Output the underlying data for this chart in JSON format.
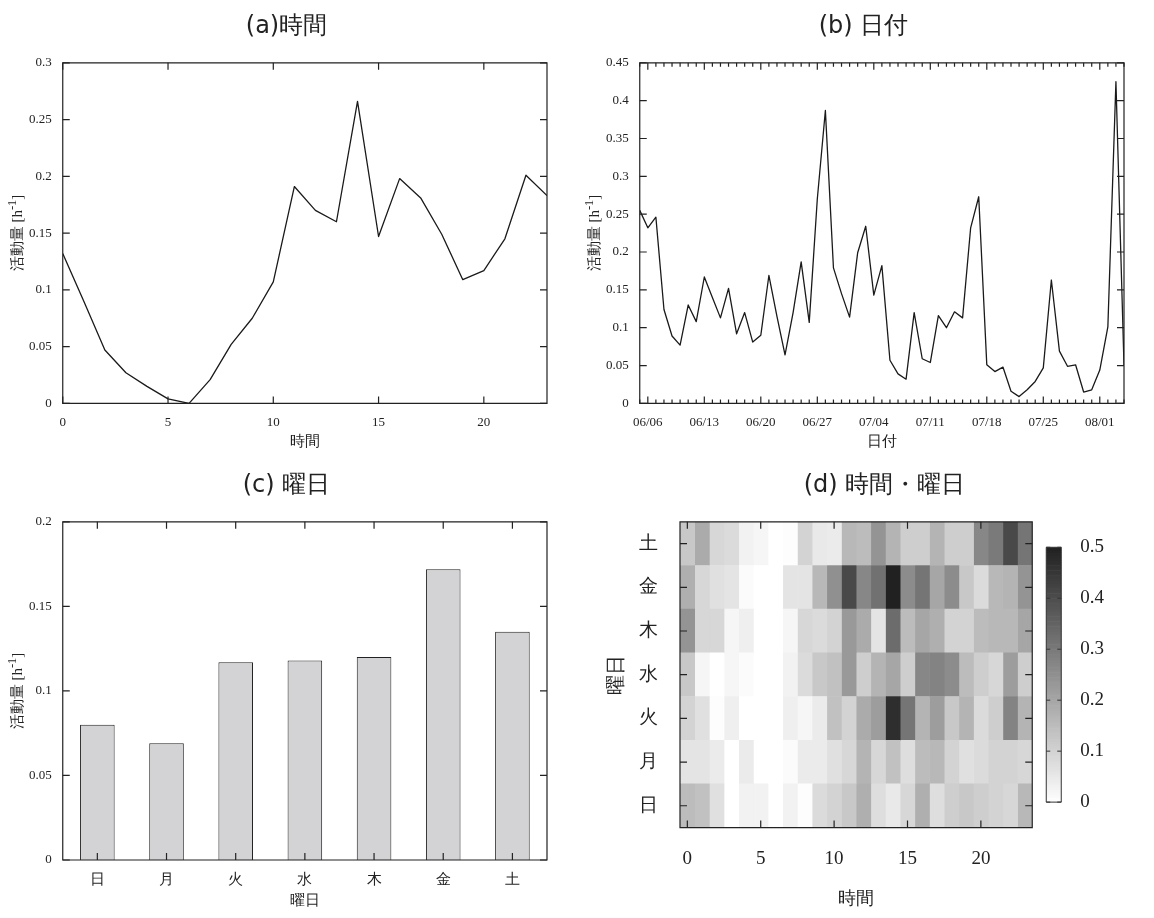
{
  "chart_data": [
    {
      "type": "line",
      "title": "(a)時間",
      "xlabel": "時間",
      "ylabel": "活動量 [h$^{-1}$]",
      "color": "#1a1a1a",
      "x": [
        0,
        1,
        2,
        3,
        4,
        5,
        6,
        7,
        8,
        9,
        10,
        11,
        12,
        13,
        14,
        15,
        16,
        17,
        18,
        19,
        20,
        21,
        22,
        23
      ],
      "values": [
        0.132,
        0.09,
        0.047,
        0.027,
        0.015,
        0.004,
        0.0,
        0.021,
        0.052,
        0.075,
        0.107,
        0.191,
        0.17,
        0.16,
        0.266,
        0.147,
        0.198,
        0.181,
        0.149,
        0.109,
        0.117,
        0.145,
        0.201,
        0.183
      ],
      "xlim": [
        0,
        23
      ],
      "xticks": [
        0,
        5,
        10,
        15,
        20
      ],
      "ylim": [
        0,
        0.3
      ],
      "yticks": [
        0,
        0.05,
        0.1,
        0.15,
        0.2,
        0.25,
        0.3
      ]
    },
    {
      "type": "line",
      "title": "(b) 日付",
      "xlabel": "日付",
      "ylabel": "活動量 [h$^{-1}$]",
      "color": "#1a1a1a",
      "x": [
        "--06-05",
        "--06-06",
        "--06-07",
        "--06-08",
        "--06-09",
        "--06-10",
        "--06-11",
        "--06-12",
        "--06-13",
        "--06-14",
        "--06-15",
        "--06-16",
        "--06-17",
        "--06-18",
        "--06-19",
        "--06-20",
        "--06-21",
        "--06-22",
        "--06-23",
        "--06-24",
        "--06-25",
        "--06-26",
        "--06-27",
        "--06-28",
        "--06-29",
        "--06-30",
        "--07-01",
        "--07-02",
        "--07-03",
        "--07-04",
        "--07-05",
        "--07-06",
        "--07-07",
        "--07-08",
        "--07-09",
        "--07-10",
        "--07-11",
        "--07-12",
        "--07-13",
        "--07-14",
        "--07-15",
        "--07-16",
        "--07-17",
        "--07-18",
        "--07-19",
        "--07-20",
        "--07-21",
        "--07-22",
        "--07-23",
        "--07-24",
        "--07-25",
        "--07-26",
        "--07-27",
        "--07-28",
        "--07-29",
        "--07-30",
        "--07-31",
        "--08-01",
        "--08-02",
        "--08-03",
        "--08-04"
      ],
      "values": [
        0.255,
        0.232,
        0.246,
        0.124,
        0.089,
        0.077,
        0.13,
        0.108,
        0.167,
        0.14,
        0.113,
        0.152,
        0.092,
        0.12,
        0.081,
        0.09,
        0.169,
        0.115,
        0.064,
        0.12,
        0.187,
        0.107,
        0.27,
        0.387,
        0.179,
        0.145,
        0.114,
        0.199,
        0.234,
        0.143,
        0.182,
        0.057,
        0.039,
        0.032,
        0.12,
        0.059,
        0.054,
        0.116,
        0.1,
        0.121,
        0.113,
        0.232,
        0.273,
        0.051,
        0.042,
        0.048,
        0.016,
        0.009,
        0.018,
        0.029,
        0.047,
        0.163,
        0.069,
        0.049,
        0.051,
        0.015,
        0.018,
        0.044,
        0.101,
        0.425,
        0.05
      ],
      "xlim": [
        "--06-05",
        "--08-04"
      ],
      "xticks": [
        {
          "value": "--06-05",
          "label": null
        },
        {
          "value": "--06-06",
          "label": "06/06"
        },
        {
          "value": "--06-07",
          "label": null
        },
        {
          "value": "--06-08",
          "label": null
        },
        {
          "value": "--06-09",
          "label": null
        },
        {
          "value": "--06-10",
          "label": null
        },
        {
          "value": "--06-11",
          "label": null
        },
        {
          "value": "--06-12",
          "label": null
        },
        {
          "value": "--06-13",
          "label": "06/13"
        },
        {
          "value": "--06-14",
          "label": null
        },
        {
          "value": "--06-15",
          "label": null
        },
        {
          "value": "--06-16",
          "label": null
        },
        {
          "value": "--06-17",
          "label": null
        },
        {
          "value": "--06-18",
          "label": null
        },
        {
          "value": "--06-19",
          "label": null
        },
        {
          "value": "--06-20",
          "label": "06/20"
        },
        {
          "value": "--06-21",
          "label": null
        },
        {
          "value": "--06-22",
          "label": null
        },
        {
          "value": "--06-23",
          "label": null
        },
        {
          "value": "--06-24",
          "label": null
        },
        {
          "value": "--06-25",
          "label": null
        },
        {
          "value": "--06-26",
          "label": null
        },
        {
          "value": "--06-27",
          "label": "06/27"
        },
        {
          "value": "--06-28",
          "label": null
        },
        {
          "value": "--06-29",
          "label": null
        },
        {
          "value": "--06-30",
          "label": null
        },
        {
          "value": "--07-01",
          "label": null
        },
        {
          "value": "--07-02",
          "label": null
        },
        {
          "value": "--07-03",
          "label": null
        },
        {
          "value": "--07-04",
          "label": "07/04"
        },
        {
          "value": "--07-05",
          "label": null
        },
        {
          "value": "--07-06",
          "label": null
        },
        {
          "value": "--07-07",
          "label": null
        },
        {
          "value": "--07-08",
          "label": null
        },
        {
          "value": "--07-09",
          "label": null
        },
        {
          "value": "--07-10",
          "label": null
        },
        {
          "value": "--07-11",
          "label": "07/11"
        },
        {
          "value": "--07-12",
          "label": null
        },
        {
          "value": "--07-13",
          "label": null
        },
        {
          "value": "--07-14",
          "label": null
        },
        {
          "value": "--07-15",
          "label": null
        },
        {
          "value": "--07-16",
          "label": null
        },
        {
          "value": "--07-17",
          "label": null
        },
        {
          "value": "--07-18",
          "label": "07/18"
        },
        {
          "value": "--07-19",
          "label": null
        },
        {
          "value": "--07-20",
          "label": null
        },
        {
          "value": "--07-21",
          "label": null
        },
        {
          "value": "--07-22",
          "label": null
        },
        {
          "value": "--07-23",
          "label": null
        },
        {
          "value": "--07-24",
          "label": null
        },
        {
          "value": "--07-25",
          "label": "07/25"
        },
        {
          "value": "--07-26",
          "label": null
        },
        {
          "value": "--07-27",
          "label": null
        },
        {
          "value": "--07-28",
          "label": null
        },
        {
          "value": "--07-29",
          "label": null
        },
        {
          "value": "--07-30",
          "label": null
        },
        {
          "value": "--07-31",
          "label": null
        },
        {
          "value": "--08-01",
          "label": "08/01"
        },
        {
          "value": "--08-02",
          "label": null
        },
        {
          "value": "--08-03",
          "label": null
        },
        {
          "value": "--08-04",
          "label": null
        }
      ],
      "ylim": [
        0,
        0.45
      ],
      "yticks": [
        0,
        0.05,
        0.1,
        0.15,
        0.2,
        0.25,
        0.3,
        0.35,
        0.4,
        0.45
      ]
    },
    {
      "type": "bar",
      "title": "(c) 曜日",
      "xlabel": "曜日",
      "ylabel": "活動量 [h$^{-1}$]",
      "color": "#d3d3d5",
      "categories": [
        "日",
        "月",
        "火",
        "水",
        "木",
        "金",
        "土"
      ],
      "values": [
        0.08,
        0.069,
        0.117,
        0.118,
        0.12,
        0.172,
        0.135
      ],
      "ylim": [
        0,
        0.2
      ],
      "yticks": [
        0,
        0.05,
        0.1,
        0.15,
        0.2
      ]
    },
    {
      "type": "heatmap",
      "title": "(d) 時間・曜日",
      "xlabel": "時間",
      "ylabel": "曜日",
      "categories": [
        "0",
        null,
        null,
        null,
        null,
        "5",
        null,
        null,
        null,
        null,
        "10",
        null,
        null,
        null,
        null,
        "15",
        null,
        null,
        null,
        null,
        "20",
        null,
        null,
        null
      ],
      "y_categories": [
        "土",
        "金",
        "木",
        "水",
        "火",
        "月",
        "日"
      ],
      "cells": [
        [
          0.125,
          0.19,
          0.09,
          0.08,
          0.03,
          0.02,
          0,
          0.005,
          0.1,
          0.05,
          0.045,
          0.16,
          0.15,
          0.24,
          0.17,
          0.11,
          0.11,
          0.17,
          0.11,
          0.11,
          0.27,
          0.3,
          0.41,
          0.31
        ],
        [
          0.18,
          0.09,
          0.07,
          0.06,
          0.01,
          0,
          0,
          0.06,
          0.06,
          0.16,
          0.25,
          0.41,
          0.27,
          0.32,
          0.5,
          0.26,
          0.31,
          0.2,
          0.26,
          0.125,
          0.08,
          0.16,
          0.17,
          0.24
        ],
        [
          0.24,
          0.09,
          0.09,
          0.02,
          0.035,
          0,
          0,
          0.02,
          0.09,
          0.08,
          0.1,
          0.23,
          0.19,
          0.06,
          0.33,
          0.15,
          0.2,
          0.18,
          0.1,
          0.1,
          0.15,
          0.16,
          0.16,
          0.2
        ],
        [
          0.125,
          0.02,
          0,
          0.02,
          0.01,
          0,
          0,
          0.03,
          0.08,
          0.125,
          0.14,
          0.23,
          0.11,
          0.17,
          0.2,
          0.11,
          0.27,
          0.28,
          0.26,
          0.15,
          0.11,
          0.09,
          0.22,
          0.11
        ],
        [
          0.1,
          0.07,
          0.005,
          0.035,
          0,
          0,
          0,
          0.035,
          0.02,
          0.045,
          0.14,
          0.1,
          0.19,
          0.22,
          0.47,
          0.31,
          0.17,
          0.22,
          0.125,
          0.17,
          0.08,
          0.11,
          0.28,
          0.17
        ],
        [
          0.06,
          0.06,
          0.045,
          0,
          0.045,
          0,
          0,
          0.01,
          0.045,
          0.045,
          0.07,
          0.09,
          0.17,
          0.09,
          0.14,
          0.075,
          0.15,
          0.16,
          0.1,
          0.07,
          0.08,
          0.1,
          0.1,
          0.09
        ],
        [
          0.15,
          0.14,
          0.07,
          0,
          0.03,
          0.03,
          0,
          0.03,
          0.005,
          0.08,
          0.1,
          0.125,
          0.18,
          0.075,
          0.05,
          0.09,
          0.18,
          0.075,
          0.11,
          0.125,
          0.11,
          0.1,
          0.09,
          0.16
        ]
      ],
      "clim": [
        0,
        0.5
      ],
      "cticks": [
        0,
        0.1,
        0.2,
        0.3,
        0.4,
        0.5
      ]
    }
  ]
}
